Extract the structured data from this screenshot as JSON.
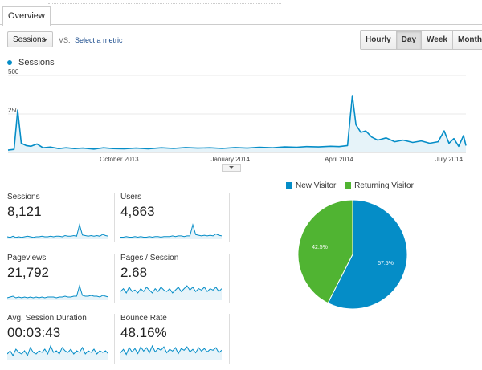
{
  "tab": "Overview",
  "metric_select": "Sessions",
  "vs_label": "VS.",
  "select_metric": "Select a metric",
  "granularity": [
    "Hourly",
    "Day",
    "Week",
    "Month"
  ],
  "active_granularity": "Day",
  "colors": {
    "line": "#058dc7",
    "fill": "#e6f3f9",
    "new_visitor": "#058dc7",
    "returning_visitor": "#50b432"
  },
  "chart_data": [
    {
      "type": "area",
      "legend": "Sessions",
      "ylim": [
        0,
        500
      ],
      "ytick_labels": [
        "500",
        "250"
      ],
      "xtick_labels": [
        "October 2013",
        "January 2014",
        "April 2014",
        "July 2014"
      ],
      "x_range": [
        "2013-07-01",
        "2014-07-15"
      ],
      "series": [
        {
          "name": "Sessions",
          "points": [
            [
              "2013-07-01",
              15
            ],
            [
              "2013-07-06",
              20
            ],
            [
              "2013-07-09",
              275
            ],
            [
              "2013-07-12",
              60
            ],
            [
              "2013-07-16",
              45
            ],
            [
              "2013-07-20",
              40
            ],
            [
              "2013-07-25",
              55
            ],
            [
              "2013-07-30",
              30
            ],
            [
              "2013-08-05",
              35
            ],
            [
              "2013-08-12",
              25
            ],
            [
              "2013-08-18",
              30
            ],
            [
              "2013-08-25",
              25
            ],
            [
              "2013-09-01",
              28
            ],
            [
              "2013-09-10",
              22
            ],
            [
              "2013-09-18",
              30
            ],
            [
              "2013-09-26",
              25
            ],
            [
              "2013-10-05",
              24
            ],
            [
              "2013-10-15",
              28
            ],
            [
              "2013-10-25",
              24
            ],
            [
              "2013-11-05",
              30
            ],
            [
              "2013-11-15",
              26
            ],
            [
              "2013-11-25",
              32
            ],
            [
              "2013-12-05",
              28
            ],
            [
              "2013-12-15",
              30
            ],
            [
              "2013-12-25",
              26
            ],
            [
              "2014-01-05",
              32
            ],
            [
              "2014-01-15",
              28
            ],
            [
              "2014-01-25",
              34
            ],
            [
              "2014-02-05",
              30
            ],
            [
              "2014-02-15",
              36
            ],
            [
              "2014-02-25",
              34
            ],
            [
              "2014-03-05",
              38
            ],
            [
              "2014-03-15",
              36
            ],
            [
              "2014-03-25",
              40
            ],
            [
              "2014-04-01",
              38
            ],
            [
              "2014-04-08",
              45
            ],
            [
              "2014-04-12",
              370
            ],
            [
              "2014-04-15",
              180
            ],
            [
              "2014-04-19",
              130
            ],
            [
              "2014-04-23",
              140
            ],
            [
              "2014-04-28",
              100
            ],
            [
              "2014-05-03",
              80
            ],
            [
              "2014-05-10",
              95
            ],
            [
              "2014-05-17",
              70
            ],
            [
              "2014-05-24",
              80
            ],
            [
              "2014-06-01",
              65
            ],
            [
              "2014-06-08",
              75
            ],
            [
              "2014-06-15",
              60
            ],
            [
              "2014-06-22",
              70
            ],
            [
              "2014-06-27",
              140
            ],
            [
              "2014-07-01",
              60
            ],
            [
              "2014-07-05",
              90
            ],
            [
              "2014-07-09",
              40
            ],
            [
              "2014-07-13",
              110
            ],
            [
              "2014-07-15",
              45
            ]
          ]
        }
      ]
    },
    {
      "type": "pie",
      "legend": [
        "New Visitor",
        "Returning Visitor"
      ],
      "values": [
        57.5,
        42.5
      ],
      "labels": [
        "57.5%",
        "42.5%"
      ]
    }
  ],
  "metrics": [
    {
      "label": "Sessions",
      "value": "8,121",
      "spark": [
        4,
        3,
        5,
        3,
        4,
        3,
        4,
        5,
        4,
        3,
        4,
        4,
        5,
        4,
        4,
        5,
        4,
        5,
        5,
        4,
        6,
        5,
        5,
        6,
        5,
        24,
        7,
        6,
        5,
        6,
        5,
        6,
        5,
        8,
        6,
        5
      ]
    },
    {
      "label": "Users",
      "value": "4,663",
      "spark": [
        3,
        3,
        4,
        3,
        3,
        4,
        3,
        4,
        3,
        3,
        4,
        3,
        4,
        4,
        3,
        4,
        4,
        4,
        5,
        4,
        5,
        5,
        4,
        5,
        5,
        22,
        7,
        6,
        5,
        6,
        5,
        6,
        5,
        8,
        6,
        5
      ]
    },
    {
      "label": "Pageviews",
      "value": "21,792",
      "spark": [
        3,
        4,
        5,
        3,
        4,
        3,
        4,
        3,
        4,
        3,
        4,
        3,
        4,
        3,
        4,
        4,
        4,
        3,
        4,
        4,
        5,
        4,
        4,
        5,
        5,
        18,
        6,
        5,
        5,
        6,
        5,
        5,
        4,
        6,
        5,
        4
      ]
    },
    {
      "label": "Pages / Session",
      "value": "2.68",
      "spark": [
        6,
        8,
        5,
        9,
        6,
        7,
        5,
        8,
        6,
        9,
        7,
        5,
        8,
        6,
        9,
        7,
        6,
        8,
        5,
        7,
        9,
        6,
        8,
        10,
        7,
        9,
        6,
        8,
        7,
        9,
        6,
        8,
        7,
        9,
        6,
        8
      ]
    },
    {
      "label": "Avg. Session Duration",
      "value": "00:03:43",
      "spark": [
        4,
        6,
        3,
        7,
        5,
        4,
        6,
        3,
        8,
        5,
        4,
        6,
        5,
        7,
        4,
        9,
        5,
        6,
        4,
        8,
        6,
        5,
        7,
        4,
        6,
        5,
        8,
        4,
        6,
        5,
        7,
        4,
        6,
        5,
        6,
        4
      ]
    },
    {
      "label": "Bounce Rate",
      "value": "48.16%",
      "spark": [
        9,
        13,
        7,
        15,
        10,
        14,
        8,
        16,
        11,
        15,
        9,
        17,
        10,
        14,
        12,
        16,
        9,
        13,
        11,
        15,
        8,
        14,
        12,
        16,
        10,
        13,
        9,
        15,
        11,
        14,
        10,
        13,
        12,
        15,
        9,
        12
      ]
    }
  ]
}
